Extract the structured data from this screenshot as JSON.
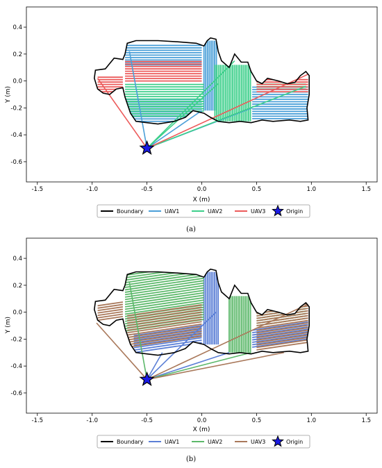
{
  "colors": {
    "boundary": "#000000",
    "origin": "#1a1ae6",
    "panel_a": {
      "uav1": "#4a9fd8",
      "uav2": "#3ccf8a",
      "uav3": "#ec5a5a"
    },
    "panel_b": {
      "uav1": "#5b7fd6",
      "uav2": "#5cb86a",
      "uav3": "#a9785a"
    }
  },
  "chart_data": [
    {
      "type": "line",
      "caption": "(a)",
      "xlabel": "X (m)",
      "ylabel": "Y (m)",
      "xlim": [
        -1.6,
        1.6
      ],
      "ylim": [
        -0.75,
        0.55
      ],
      "xticks": [
        "-1.5",
        "-1.0",
        "-0.5",
        "0.0",
        "0.5",
        "1.0",
        "1.5"
      ],
      "yticks": [
        "0.4",
        "0.2",
        "0.0",
        "-0.2",
        "-0.4",
        "-0.6"
      ],
      "grid": false,
      "legend_position": "bottom-center",
      "legend": [
        "Boundary",
        "UAV1",
        "UAV2",
        "UAV3",
        "Origin"
      ],
      "origin": [
        -0.5,
        -0.5
      ],
      "boundary": [
        [
          -0.98,
          0.02
        ],
        [
          -0.97,
          0.08
        ],
        [
          -0.88,
          0.09
        ],
        [
          -0.8,
          0.17
        ],
        [
          -0.72,
          0.16
        ],
        [
          -0.7,
          0.2
        ],
        [
          -0.68,
          0.28
        ],
        [
          -0.6,
          0.3
        ],
        [
          -0.4,
          0.3
        ],
        [
          -0.2,
          0.29
        ],
        [
          -0.05,
          0.28
        ],
        [
          0.02,
          0.26
        ],
        [
          0.05,
          0.3
        ],
        [
          0.08,
          0.32
        ],
        [
          0.13,
          0.31
        ],
        [
          0.15,
          0.22
        ],
        [
          0.18,
          0.15
        ],
        [
          0.25,
          0.1
        ],
        [
          0.3,
          0.2
        ],
        [
          0.36,
          0.14
        ],
        [
          0.42,
          0.14
        ],
        [
          0.45,
          0.07
        ],
        [
          0.5,
          0.0
        ],
        [
          0.55,
          -0.02
        ],
        [
          0.6,
          0.02
        ],
        [
          0.7,
          0.0
        ],
        [
          0.78,
          -0.02
        ],
        [
          0.85,
          -0.01
        ],
        [
          0.9,
          0.04
        ],
        [
          0.95,
          0.07
        ],
        [
          0.98,
          0.04
        ],
        [
          0.98,
          -0.1
        ],
        [
          0.96,
          -0.2
        ],
        [
          0.97,
          -0.29
        ],
        [
          0.9,
          -0.3
        ],
        [
          0.8,
          -0.29
        ],
        [
          0.65,
          -0.3
        ],
        [
          0.55,
          -0.29
        ],
        [
          0.45,
          -0.31
        ],
        [
          0.35,
          -0.3
        ],
        [
          0.25,
          -0.31
        ],
        [
          0.15,
          -0.3
        ],
        [
          0.08,
          -0.27
        ],
        [
          0.02,
          -0.24
        ],
        [
          -0.08,
          -0.22
        ],
        [
          -0.15,
          -0.27
        ],
        [
          -0.25,
          -0.3
        ],
        [
          -0.4,
          -0.32
        ],
        [
          -0.5,
          -0.31
        ],
        [
          -0.6,
          -0.3
        ],
        [
          -0.65,
          -0.24
        ],
        [
          -0.7,
          -0.12
        ],
        [
          -0.72,
          -0.05
        ],
        [
          -0.78,
          -0.06
        ],
        [
          -0.84,
          -0.1
        ],
        [
          -0.9,
          -0.09
        ],
        [
          -0.95,
          -0.06
        ],
        [
          -0.98,
          0.02
        ]
      ],
      "series": [
        {
          "name": "UAV1",
          "regions": [
            {
              "x": [
                -0.7,
                0.0
              ],
              "y": [
                -0.3,
                -0.13
              ]
            },
            {
              "x": [
                -0.7,
                0.0
              ],
              "y": [
                0.12,
                0.28
              ]
            },
            {
              "x": [
                0.02,
                0.14
              ],
              "y": [
                -0.22,
                0.3
              ]
            },
            {
              "x": [
                0.46,
                0.97
              ],
              "y": [
                -0.28,
                -0.04
              ]
            }
          ],
          "transit": [
            [
              -0.66,
              0.22
            ],
            [
              0.0,
              -0.22
            ],
            [
              0.46,
              -0.2
            ]
          ]
        },
        {
          "name": "UAV2",
          "regions": [
            {
              "x": [
                -0.7,
                0.02
              ],
              "y": [
                -0.26,
                -0.02
              ]
            },
            {
              "x": [
                0.12,
                0.45
              ],
              "y": [
                -0.3,
                0.12
              ]
            },
            {
              "x": [
                0.5,
                0.95
              ],
              "y": [
                -0.06,
                -0.02
              ]
            }
          ],
          "transit": [
            [
              0.15,
              -0.02
            ],
            [
              0.3,
              0.15
            ],
            [
              0.95,
              -0.04
            ]
          ]
        },
        {
          "name": "UAV3",
          "regions": [
            {
              "x": [
                -0.95,
                -0.72
              ],
              "y": [
                -0.08,
                0.04
              ]
            },
            {
              "x": [
                -0.7,
                0.0
              ],
              "y": [
                0.0,
                0.16
              ]
            },
            {
              "x": [
                0.5,
                0.97
              ],
              "y": [
                -0.08,
                0.02
              ]
            }
          ],
          "transit": [
            [
              -0.95,
              0.02
            ],
            [
              0.97,
              0.05
            ]
          ]
        }
      ]
    },
    {
      "type": "line",
      "caption": "(b)",
      "xlabel": "X (m)",
      "ylabel": "Y (m)",
      "xlim": [
        -1.6,
        1.6
      ],
      "ylim": [
        -0.75,
        0.55
      ],
      "xticks": [
        "-1.5",
        "-1.0",
        "-0.5",
        "0.0",
        "0.5",
        "1.0",
        "1.5"
      ],
      "yticks": [
        "0.4",
        "0.2",
        "0.0",
        "-0.2",
        "-0.4",
        "-0.6"
      ],
      "grid": false,
      "legend_position": "bottom-center",
      "legend": [
        "Boundary",
        "UAV1",
        "UAV2",
        "UAV3",
        "Origin"
      ],
      "origin": [
        -0.5,
        -0.5
      ],
      "boundary": [
        [
          -0.98,
          0.02
        ],
        [
          -0.97,
          0.08
        ],
        [
          -0.88,
          0.09
        ],
        [
          -0.8,
          0.17
        ],
        [
          -0.72,
          0.16
        ],
        [
          -0.7,
          0.2
        ],
        [
          -0.68,
          0.28
        ],
        [
          -0.6,
          0.3
        ],
        [
          -0.4,
          0.3
        ],
        [
          -0.2,
          0.29
        ],
        [
          -0.05,
          0.28
        ],
        [
          0.02,
          0.26
        ],
        [
          0.05,
          0.3
        ],
        [
          0.08,
          0.32
        ],
        [
          0.13,
          0.31
        ],
        [
          0.15,
          0.22
        ],
        [
          0.18,
          0.15
        ],
        [
          0.25,
          0.1
        ],
        [
          0.3,
          0.2
        ],
        [
          0.36,
          0.14
        ],
        [
          0.42,
          0.14
        ],
        [
          0.45,
          0.07
        ],
        [
          0.5,
          0.0
        ],
        [
          0.55,
          -0.02
        ],
        [
          0.6,
          0.02
        ],
        [
          0.7,
          0.0
        ],
        [
          0.78,
          -0.02
        ],
        [
          0.85,
          -0.01
        ],
        [
          0.9,
          0.04
        ],
        [
          0.95,
          0.07
        ],
        [
          0.98,
          0.04
        ],
        [
          0.98,
          -0.1
        ],
        [
          0.96,
          -0.2
        ],
        [
          0.97,
          -0.29
        ],
        [
          0.9,
          -0.3
        ],
        [
          0.8,
          -0.29
        ],
        [
          0.65,
          -0.3
        ],
        [
          0.55,
          -0.29
        ],
        [
          0.45,
          -0.31
        ],
        [
          0.35,
          -0.3
        ],
        [
          0.25,
          -0.31
        ],
        [
          0.15,
          -0.3
        ],
        [
          0.08,
          -0.27
        ],
        [
          0.02,
          -0.24
        ],
        [
          -0.08,
          -0.22
        ],
        [
          -0.15,
          -0.27
        ],
        [
          -0.25,
          -0.3
        ],
        [
          -0.4,
          -0.32
        ],
        [
          -0.5,
          -0.31
        ],
        [
          -0.6,
          -0.3
        ],
        [
          -0.65,
          -0.24
        ],
        [
          -0.7,
          -0.12
        ],
        [
          -0.72,
          -0.05
        ],
        [
          -0.78,
          -0.06
        ],
        [
          -0.84,
          -0.1
        ],
        [
          -0.9,
          -0.09
        ],
        [
          -0.95,
          -0.06
        ],
        [
          -0.98,
          0.02
        ]
      ],
      "series": [
        {
          "name": "UAV1",
          "regions": [
            {
              "x": [
                -0.62,
                0.0
              ],
              "y": [
                -0.3,
                -0.16
              ]
            },
            {
              "x": [
                0.02,
                0.15
              ],
              "y": [
                -0.24,
                0.3
              ]
            },
            {
              "x": [
                0.46,
                0.97
              ],
              "y": [
                -0.26,
                -0.12
              ]
            }
          ],
          "transit": [
            [
              -0.36,
              -0.3
            ],
            [
              0.13,
              0.0
            ],
            [
              0.25,
              -0.3
            ]
          ]
        },
        {
          "name": "UAV2",
          "regions": [
            {
              "x": [
                -0.7,
                0.02
              ],
              "y": [
                -0.14,
                0.28
              ]
            },
            {
              "x": [
                0.25,
                0.46
              ],
              "y": [
                -0.3,
                0.12
              ]
            },
            {
              "x": [
                0.5,
                0.95
              ],
              "y": [
                -0.1,
                0.0
              ]
            }
          ],
          "transit": [
            [
              -0.66,
              0.22
            ],
            [
              0.45,
              -0.3
            ]
          ]
        },
        {
          "name": "UAV3",
          "regions": [
            {
              "x": [
                -0.95,
                -0.72
              ],
              "y": [
                -0.06,
                0.06
              ]
            },
            {
              "x": [
                -0.68,
                0.0
              ],
              "y": [
                -0.26,
                -0.02
              ]
            },
            {
              "x": [
                0.5,
                0.97
              ],
              "y": [
                -0.28,
                0.05
              ]
            }
          ],
          "transit": [
            [
              -0.96,
              -0.08
            ],
            [
              0.97,
              0.06
            ],
            [
              0.75,
              -0.3
            ]
          ]
        }
      ]
    }
  ]
}
